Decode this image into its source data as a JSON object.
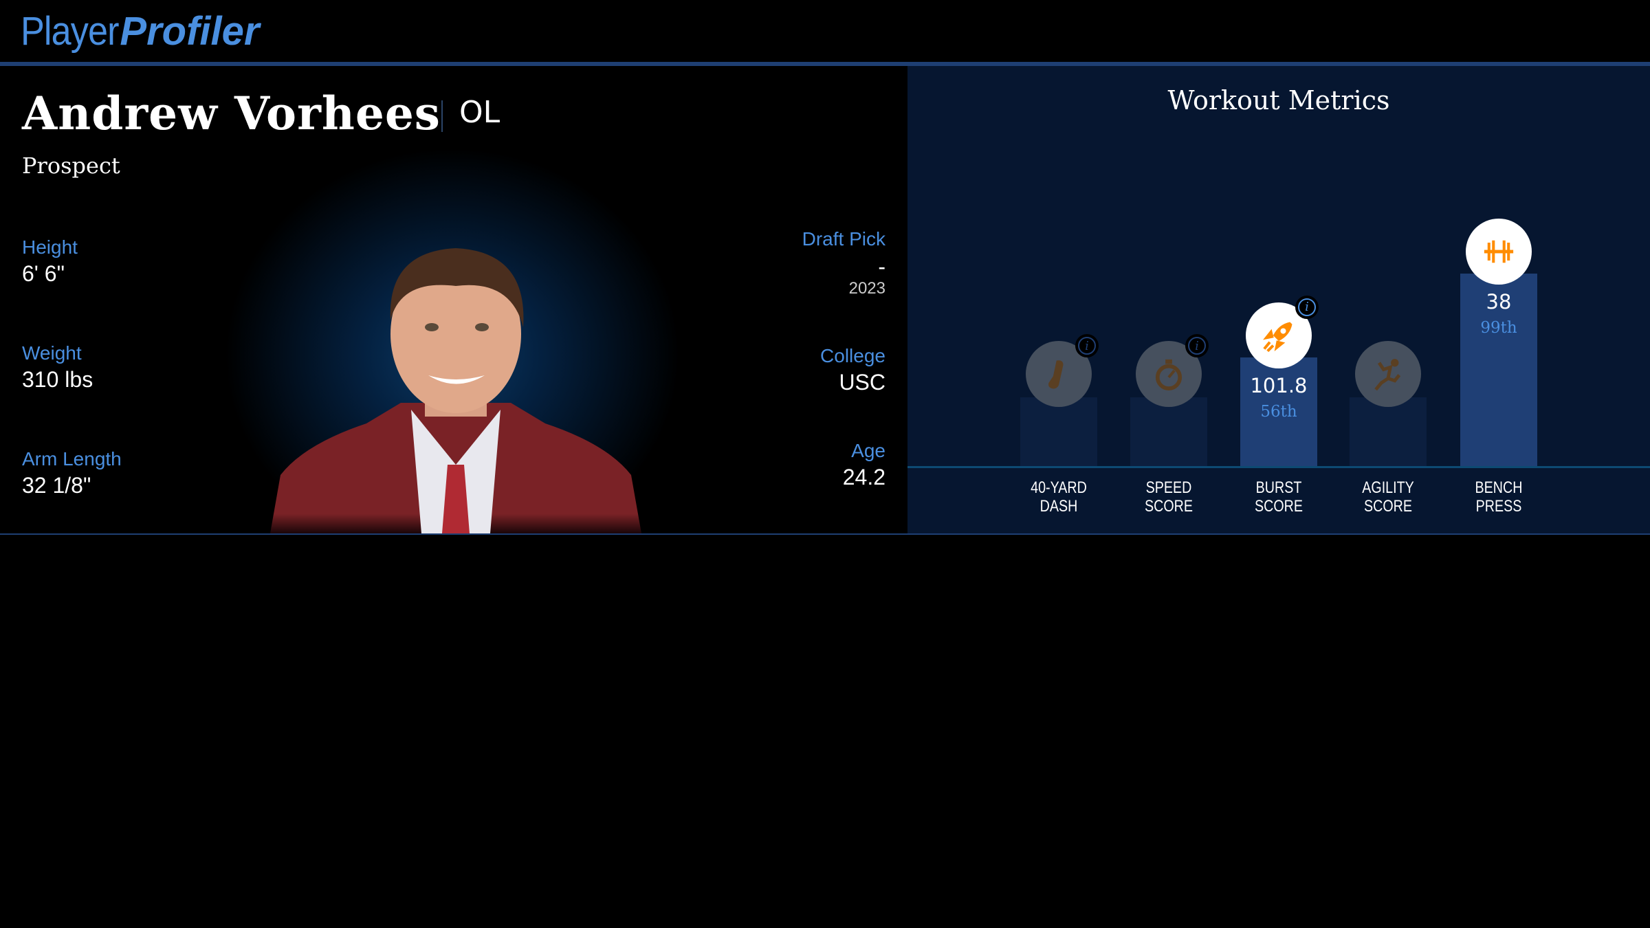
{
  "header": {
    "logo_part1": "Player",
    "logo_part2": "Profiler",
    "accent": "#4a8fe0"
  },
  "player": {
    "name": "Andrew Vorhees",
    "position": "OL",
    "status": "Prospect"
  },
  "left_stats": [
    {
      "label": "Height",
      "value": "6' 6\""
    },
    {
      "label": "Weight",
      "value": "310 lbs"
    },
    {
      "label": "Arm Length",
      "value": "32 1/8\""
    }
  ],
  "right_stats": {
    "draft_pick": {
      "label": "Draft Pick",
      "value": "-",
      "year": "2023"
    },
    "college": {
      "label": "College",
      "value": "USC"
    },
    "age": {
      "label": "Age",
      "value": "24.2"
    }
  },
  "workout": {
    "title": "Workout Metrics",
    "metrics": [
      {
        "label1": "40-YARD",
        "label2": "DASH",
        "icon": "shoe-icon",
        "value": null,
        "percentile": null,
        "info": true
      },
      {
        "label1": "SPEED",
        "label2": "SCORE",
        "icon": "stopwatch-icon",
        "value": null,
        "percentile": null,
        "info": true
      },
      {
        "label1": "BURST",
        "label2": "SCORE",
        "icon": "rocket-icon",
        "value": "101.8",
        "percentile": "56th",
        "pct": 56,
        "info": true
      },
      {
        "label1": "AGILITY",
        "label2": "SCORE",
        "icon": "runner-icon",
        "value": null,
        "percentile": null,
        "info": false
      },
      {
        "label1": "BENCH",
        "label2": "PRESS",
        "icon": "barbell-icon",
        "value": "38",
        "percentile": "99th",
        "pct": 99,
        "info": false
      }
    ],
    "colors": {
      "active_bar": "#1f3f75",
      "inactive_bar": "#0c1f3f",
      "icon_active": "#ff8c00"
    }
  }
}
